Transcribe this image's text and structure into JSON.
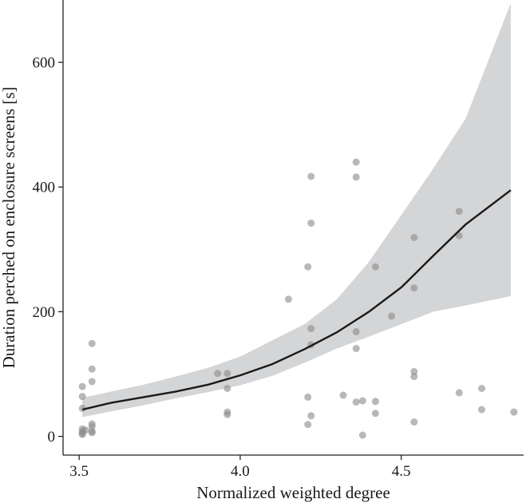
{
  "chart_data": {
    "type": "scatter",
    "title": "",
    "xlabel": "Normalized weighted degree",
    "ylabel": "Duration perched on enclosure screens [s]",
    "xlim": [
      3.45,
      4.88
    ],
    "ylim": [
      -30,
      700
    ],
    "x_ticks": [
      3.5,
      4.0,
      4.5
    ],
    "x_tick_labels": [
      "3.5",
      "4.0",
      "4.5"
    ],
    "y_ticks": [
      0,
      200,
      400,
      600
    ],
    "y_tick_labels": [
      "0",
      "200",
      "400",
      "600"
    ],
    "grid": false,
    "legend": "none",
    "colors": {
      "points": "#8c8c8c",
      "fit_line": "#1a1a1a",
      "ribbon": "#d4d5d7",
      "axis": "#222222"
    },
    "points": [
      {
        "x": 3.51,
        "y": 80
      },
      {
        "x": 3.51,
        "y": 64
      },
      {
        "x": 3.51,
        "y": 45
      },
      {
        "x": 3.51,
        "y": 12
      },
      {
        "x": 3.51,
        "y": 8
      },
      {
        "x": 3.51,
        "y": 5
      },
      {
        "x": 3.51,
        "y": 3
      },
      {
        "x": 3.52,
        "y": 10
      },
      {
        "x": 3.54,
        "y": 149
      },
      {
        "x": 3.54,
        "y": 108
      },
      {
        "x": 3.54,
        "y": 88
      },
      {
        "x": 3.54,
        "y": 20
      },
      {
        "x": 3.54,
        "y": 16
      },
      {
        "x": 3.54,
        "y": 8
      },
      {
        "x": 3.54,
        "y": 6
      },
      {
        "x": 3.93,
        "y": 101
      },
      {
        "x": 3.96,
        "y": 101
      },
      {
        "x": 3.96,
        "y": 77
      },
      {
        "x": 3.96,
        "y": 39
      },
      {
        "x": 3.96,
        "y": 35
      },
      {
        "x": 4.15,
        "y": 220
      },
      {
        "x": 4.21,
        "y": 272
      },
      {
        "x": 4.21,
        "y": 63
      },
      {
        "x": 4.21,
        "y": 19
      },
      {
        "x": 4.22,
        "y": 417
      },
      {
        "x": 4.22,
        "y": 342
      },
      {
        "x": 4.22,
        "y": 173
      },
      {
        "x": 4.22,
        "y": 147
      },
      {
        "x": 4.22,
        "y": 33
      },
      {
        "x": 4.32,
        "y": 66
      },
      {
        "x": 4.36,
        "y": 440
      },
      {
        "x": 4.36,
        "y": 416
      },
      {
        "x": 4.36,
        "y": 168
      },
      {
        "x": 4.36,
        "y": 141
      },
      {
        "x": 4.36,
        "y": 55
      },
      {
        "x": 4.38,
        "y": 57
      },
      {
        "x": 4.38,
        "y": 2
      },
      {
        "x": 4.42,
        "y": 272
      },
      {
        "x": 4.42,
        "y": 56
      },
      {
        "x": 4.42,
        "y": 37
      },
      {
        "x": 4.47,
        "y": 193
      },
      {
        "x": 4.54,
        "y": 319
      },
      {
        "x": 4.54,
        "y": 238
      },
      {
        "x": 4.54,
        "y": 104
      },
      {
        "x": 4.54,
        "y": 96
      },
      {
        "x": 4.54,
        "y": 23
      },
      {
        "x": 4.68,
        "y": 361
      },
      {
        "x": 4.68,
        "y": 322
      },
      {
        "x": 4.68,
        "y": 70
      },
      {
        "x": 4.75,
        "y": 77
      },
      {
        "x": 4.75,
        "y": 43
      },
      {
        "x": 4.85,
        "y": 39
      }
    ],
    "fit": {
      "x": [
        3.51,
        3.6,
        3.7,
        3.8,
        3.9,
        4.0,
        4.1,
        4.2,
        4.3,
        4.4,
        4.5,
        4.6,
        4.7,
        4.84
      ],
      "y": [
        43,
        54,
        63,
        72,
        83,
        98,
        116,
        140,
        167,
        200,
        239,
        290,
        340,
        395
      ],
      "lower": [
        31,
        40,
        50,
        61,
        71,
        82,
        97,
        118,
        141,
        160,
        180,
        200,
        210,
        225
      ],
      "upper": [
        62,
        72,
        83,
        96,
        110,
        128,
        154,
        180,
        220,
        280,
        355,
        430,
        510,
        695
      ]
    }
  }
}
